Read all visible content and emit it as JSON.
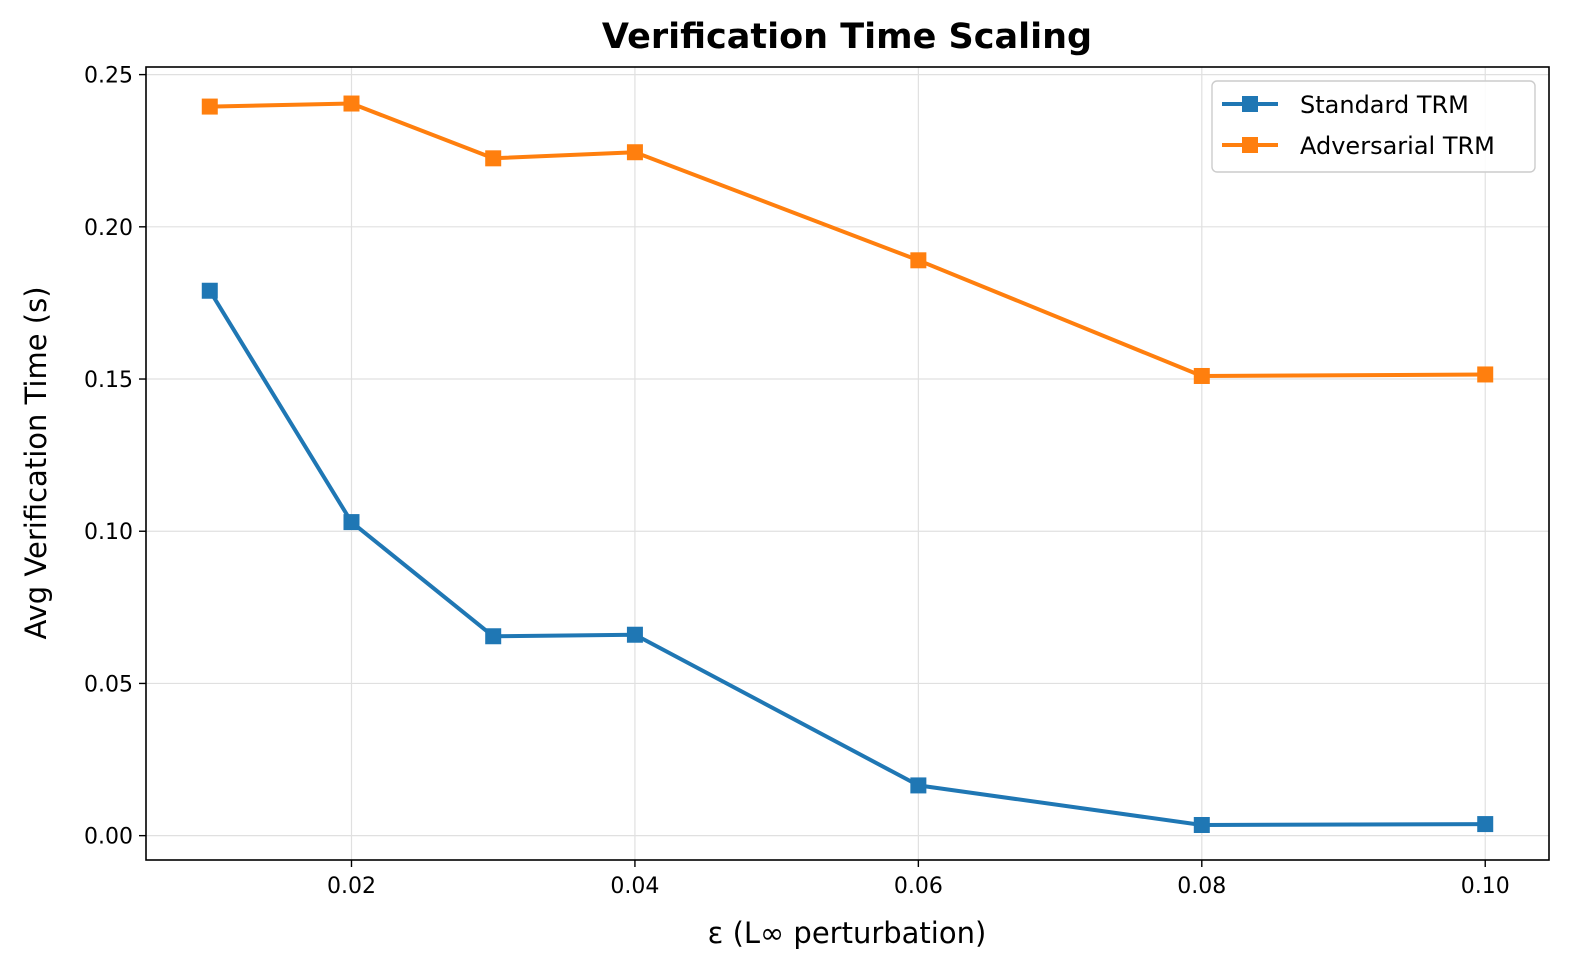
{
  "chart_data": {
    "type": "line",
    "title": "Verification Time Scaling",
    "xlabel": "ε (L∞ perturbation)",
    "ylabel": "Avg Verification Time (s)",
    "xlim": [
      0.0055,
      0.1045
    ],
    "ylim": [
      -0.008,
      0.2525
    ],
    "xticks": [
      0.02,
      0.04,
      0.06,
      0.08,
      0.1
    ],
    "xtick_labels": [
      "0.02",
      "0.04",
      "0.06",
      "0.08",
      "0.10"
    ],
    "yticks": [
      0.0,
      0.05,
      0.1,
      0.15,
      0.2,
      0.25
    ],
    "ytick_labels": [
      "0.00",
      "0.05",
      "0.10",
      "0.15",
      "0.20",
      "0.25"
    ],
    "grid": true,
    "legend_position": "top-right",
    "x": [
      0.01,
      0.02,
      0.03,
      0.04,
      0.06,
      0.08,
      0.1
    ],
    "series": [
      {
        "name": "Standard TRM",
        "color": "#1f77b4",
        "marker": "square",
        "values": [
          0.179,
          0.103,
          0.0655,
          0.066,
          0.0165,
          0.0035,
          0.0038
        ]
      },
      {
        "name": "Adversarial TRM",
        "color": "#ff7f0e",
        "marker": "square",
        "values": [
          0.2395,
          0.2405,
          0.2225,
          0.2245,
          0.189,
          0.151,
          0.1515
        ]
      }
    ]
  }
}
